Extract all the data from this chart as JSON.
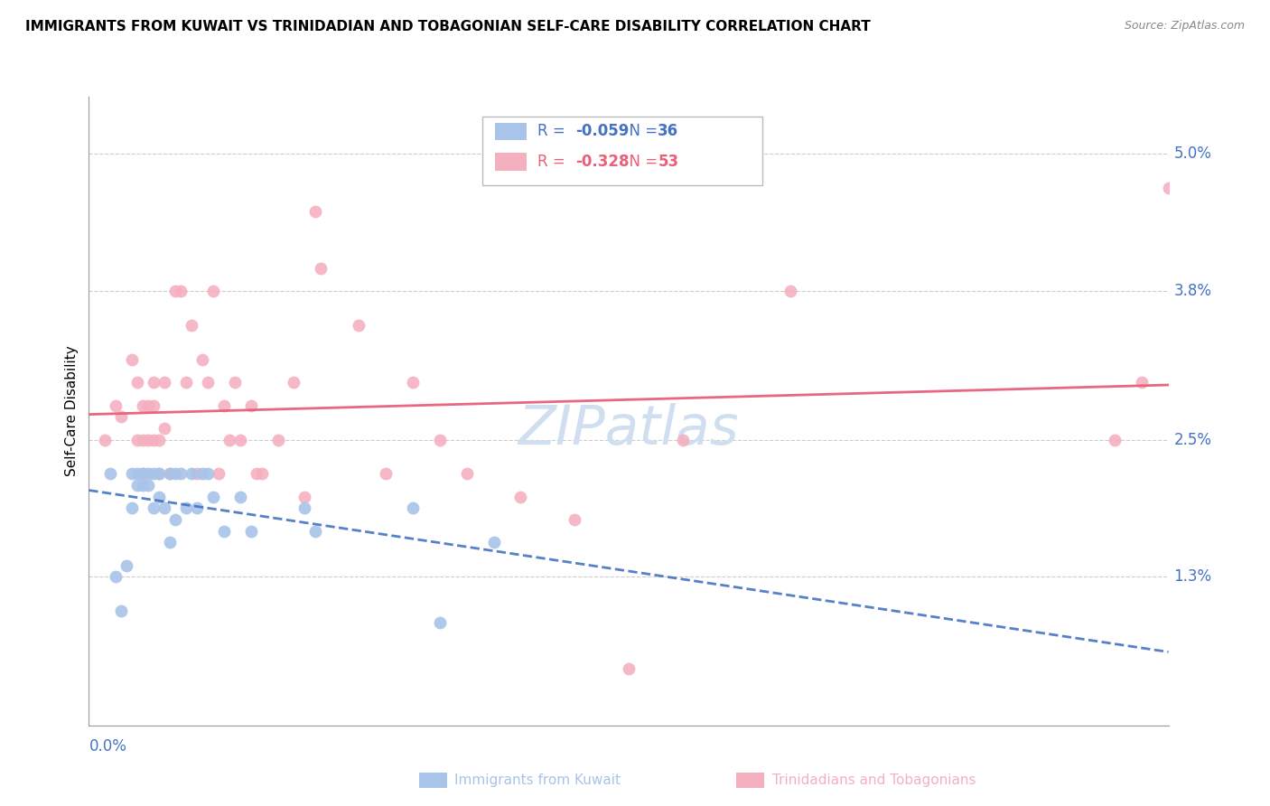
{
  "title": "IMMIGRANTS FROM KUWAIT VS TRINIDADIAN AND TOBAGONIAN SELF-CARE DISABILITY CORRELATION CHART",
  "source": "Source: ZipAtlas.com",
  "ylabel": "Self-Care Disability",
  "xmin": 0.0,
  "xmax": 0.2,
  "ymin": 0.0,
  "ymax": 0.055,
  "kuwait_R": "-0.059",
  "kuwait_N": "36",
  "tt_R": "-0.328",
  "tt_N": "53",
  "kuwait_color": "#a8c4e8",
  "tt_color": "#f5b0c0",
  "kuwait_line_color": "#4472c4",
  "tt_line_color": "#e8607a",
  "kuwait_scatter_x": [
    0.004,
    0.005,
    0.006,
    0.007,
    0.008,
    0.008,
    0.009,
    0.009,
    0.01,
    0.01,
    0.011,
    0.011,
    0.012,
    0.012,
    0.013,
    0.013,
    0.014,
    0.015,
    0.015,
    0.016,
    0.016,
    0.017,
    0.018,
    0.019,
    0.02,
    0.021,
    0.022,
    0.023,
    0.025,
    0.028,
    0.03,
    0.04,
    0.042,
    0.06,
    0.065,
    0.075
  ],
  "kuwait_scatter_y": [
    0.022,
    0.013,
    0.01,
    0.014,
    0.019,
    0.022,
    0.021,
    0.022,
    0.021,
    0.022,
    0.021,
    0.022,
    0.022,
    0.019,
    0.022,
    0.02,
    0.019,
    0.016,
    0.022,
    0.022,
    0.018,
    0.022,
    0.019,
    0.022,
    0.019,
    0.022,
    0.022,
    0.02,
    0.017,
    0.02,
    0.017,
    0.019,
    0.017,
    0.019,
    0.009,
    0.016
  ],
  "tt_scatter_x": [
    0.003,
    0.005,
    0.006,
    0.008,
    0.009,
    0.009,
    0.01,
    0.01,
    0.01,
    0.011,
    0.011,
    0.012,
    0.012,
    0.012,
    0.013,
    0.013,
    0.014,
    0.014,
    0.015,
    0.016,
    0.017,
    0.018,
    0.019,
    0.02,
    0.021,
    0.022,
    0.023,
    0.024,
    0.025,
    0.026,
    0.027,
    0.028,
    0.03,
    0.031,
    0.032,
    0.035,
    0.038,
    0.04,
    0.042,
    0.043,
    0.05,
    0.055,
    0.06,
    0.065,
    0.07,
    0.08,
    0.09,
    0.1,
    0.11,
    0.13,
    0.19,
    0.195,
    0.2
  ],
  "tt_scatter_y": [
    0.025,
    0.028,
    0.027,
    0.032,
    0.025,
    0.03,
    0.022,
    0.025,
    0.028,
    0.025,
    0.028,
    0.03,
    0.025,
    0.028,
    0.025,
    0.022,
    0.03,
    0.026,
    0.022,
    0.038,
    0.038,
    0.03,
    0.035,
    0.022,
    0.032,
    0.03,
    0.038,
    0.022,
    0.028,
    0.025,
    0.03,
    0.025,
    0.028,
    0.022,
    0.022,
    0.025,
    0.03,
    0.02,
    0.045,
    0.04,
    0.035,
    0.022,
    0.03,
    0.025,
    0.022,
    0.02,
    0.018,
    0.005,
    0.025,
    0.038,
    0.025,
    0.03,
    0.047
  ],
  "ytick_vals": [
    0.0,
    0.013,
    0.025,
    0.038,
    0.05
  ],
  "ytick_labels": [
    "",
    "1.3%",
    "2.5%",
    "3.8%",
    "5.0%"
  ],
  "background_color": "#ffffff",
  "grid_color": "#cccccc",
  "tick_label_color": "#4472c4",
  "watermark_color": "#d0dff0",
  "bottom_legend_left": "Immigrants from Kuwait",
  "bottom_legend_right": "Trinidadians and Tobagonians"
}
